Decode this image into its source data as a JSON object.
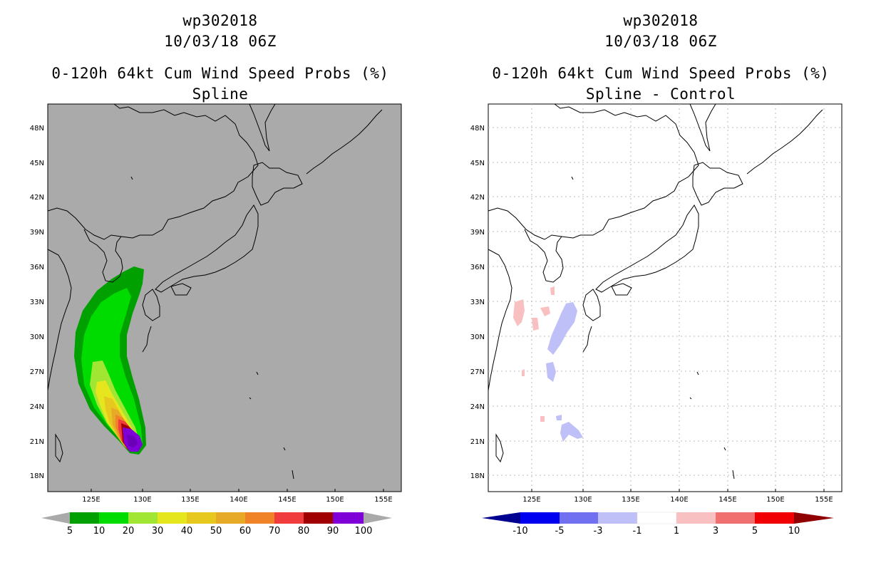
{
  "panels": [
    {
      "id": "left",
      "storm": "wp302018",
      "datetime": "10/03/18 06Z",
      "product": "0-120h 64kt Cum Wind Speed Probs (%)",
      "subtitle": "Spline",
      "background": "#aaaaaa",
      "colorbar": {
        "colors": [
          "#00a000",
          "#00dc00",
          "#a0e632",
          "#e6e61e",
          "#e6c81e",
          "#e6aa28",
          "#f08228",
          "#f03c3c",
          "#a00000",
          "#8000d8"
        ],
        "labels": [
          "5",
          "10",
          "20",
          "30",
          "40",
          "50",
          "60",
          "70",
          "80",
          "90",
          "100"
        ],
        "end_color": "#aaaaaa"
      }
    },
    {
      "id": "right",
      "storm": "wp302018",
      "datetime": "10/03/18 06Z",
      "product": "0-120h 64kt Cum Wind Speed Probs (%)",
      "subtitle": "Spline - Control",
      "background": "#ffffff",
      "colorbar": {
        "colors": [
          "#0000f0",
          "#7070f0",
          "#c0c0f8",
          "#ffffff",
          "#f8c0c0",
          "#f07070",
          "#f00000"
        ],
        "labels": [
          "-10",
          "-5",
          "-3",
          "-1",
          "1",
          "3",
          "5",
          "10"
        ],
        "end_left": "#000090",
        "end_right": "#900000"
      }
    }
  ],
  "axes": {
    "lon_labels": [
      "125E",
      "130E",
      "135E",
      "140E",
      "145E",
      "150E",
      "155E"
    ],
    "lat_labels": [
      "48N",
      "45N",
      "42N",
      "39N",
      "36N",
      "33N",
      "30N",
      "27N",
      "24N",
      "21N",
      "18N"
    ]
  }
}
